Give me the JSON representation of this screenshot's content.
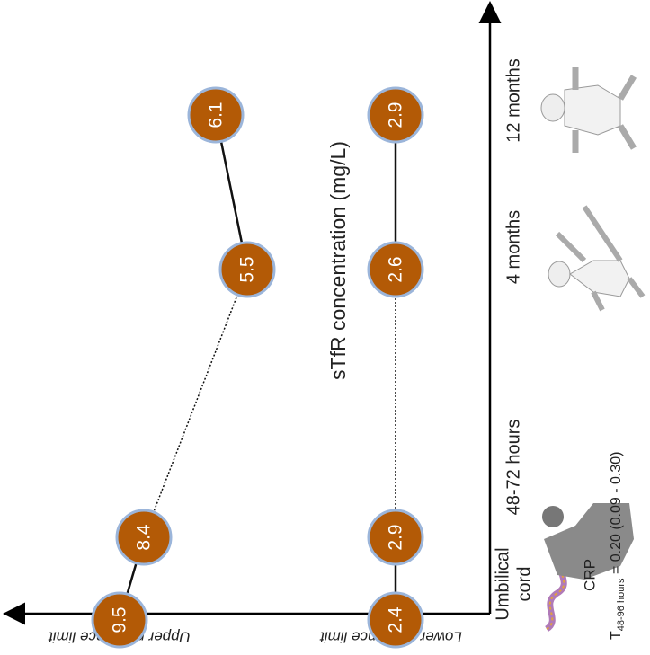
{
  "axis_title": "sTfR concentration (mg/L)",
  "row_labels": {
    "upper": "Upper reference limit",
    "lower": "Lower reference limit"
  },
  "time_points": [
    [
      "Umbilical",
      "cord"
    ],
    [
      "48-72 hours"
    ],
    [
      "4 months"
    ],
    [
      "12 months"
    ]
  ],
  "upper": [
    9.5,
    8.4,
    5.5,
    6.1
  ],
  "lower": [
    2.4,
    2.9,
    2.6,
    2.9
  ],
  "crp": {
    "label": "CRP",
    "symbol": "T",
    "subscript": "48-96 hours",
    "value": " = 0.20 (0.09 - 0.30)"
  }
}
